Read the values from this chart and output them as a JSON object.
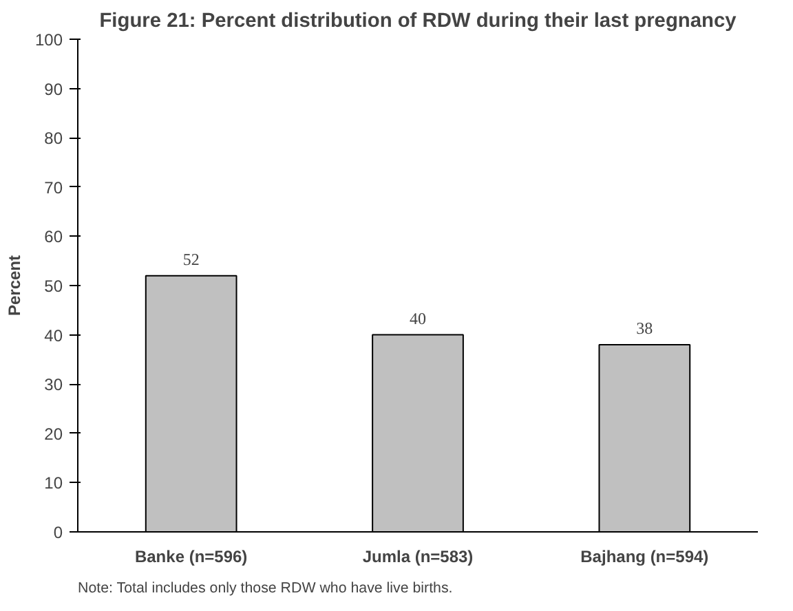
{
  "chart_data": {
    "type": "bar",
    "title": "Figure 21: Percent distribution of RDW during their last pregnancy",
    "categories": [
      "Banke (n=596)",
      "Jumla (n=583)",
      "Bajhang (n=594)"
    ],
    "values": [
      52,
      40,
      38
    ],
    "color": "#c0c0c0",
    "ylabel": "Percent",
    "ylim": [
      0,
      100
    ],
    "yticks": [
      0,
      10,
      20,
      30,
      40,
      50,
      60,
      70,
      80,
      90,
      100
    ],
    "grid": false,
    "data_labels": true,
    "annotations": [
      "Note:  Total includes only those RDW who have live births."
    ]
  }
}
